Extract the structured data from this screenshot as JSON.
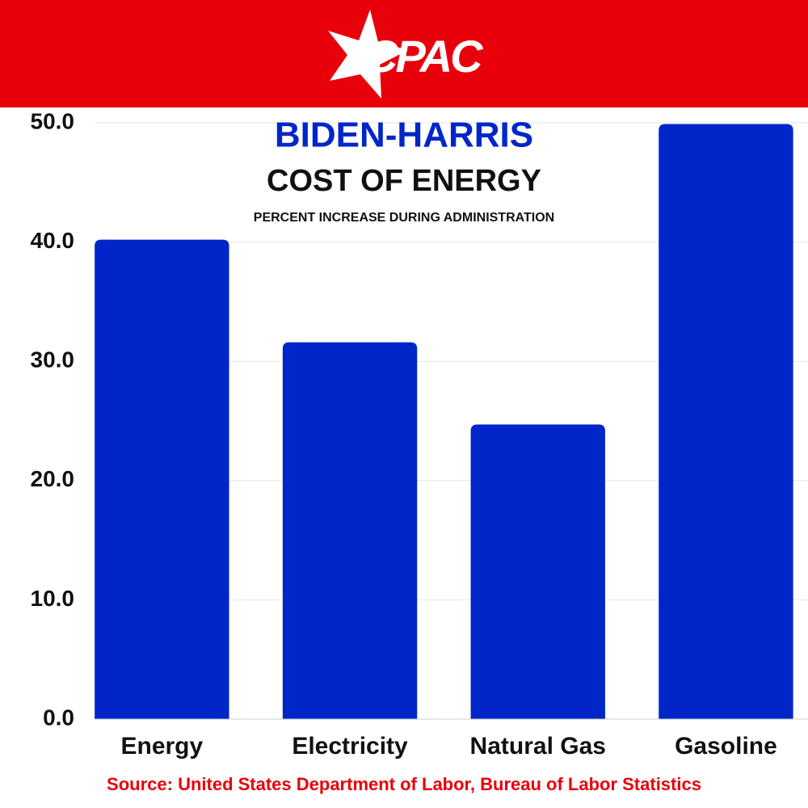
{
  "logo": "CPAC",
  "chart_data": {
    "type": "bar",
    "title": "BIDEN-HARRIS",
    "subtitle": "COST OF ENERGY",
    "caption": "PERCENT INCREASE DURING ADMINISTRATION",
    "source": "Source: United States Department of Labor, Bureau of Labor Statistics",
    "categories": [
      "Energy",
      "Electricity",
      "Natural Gas",
      "Gasoline"
    ],
    "values": [
      40.2,
      31.6,
      24.7,
      49.9
    ],
    "color": "#0026c9",
    "ylim": [
      0,
      50
    ],
    "yticks": [
      {
        "value": 0,
        "label": "0.0"
      },
      {
        "value": 10,
        "label": "10.0"
      },
      {
        "value": 20,
        "label": "20.0"
      },
      {
        "value": 30,
        "label": "30.0"
      },
      {
        "value": 40,
        "label": "40.0"
      },
      {
        "value": 50,
        "label": "50.0"
      }
    ],
    "grid": true
  }
}
